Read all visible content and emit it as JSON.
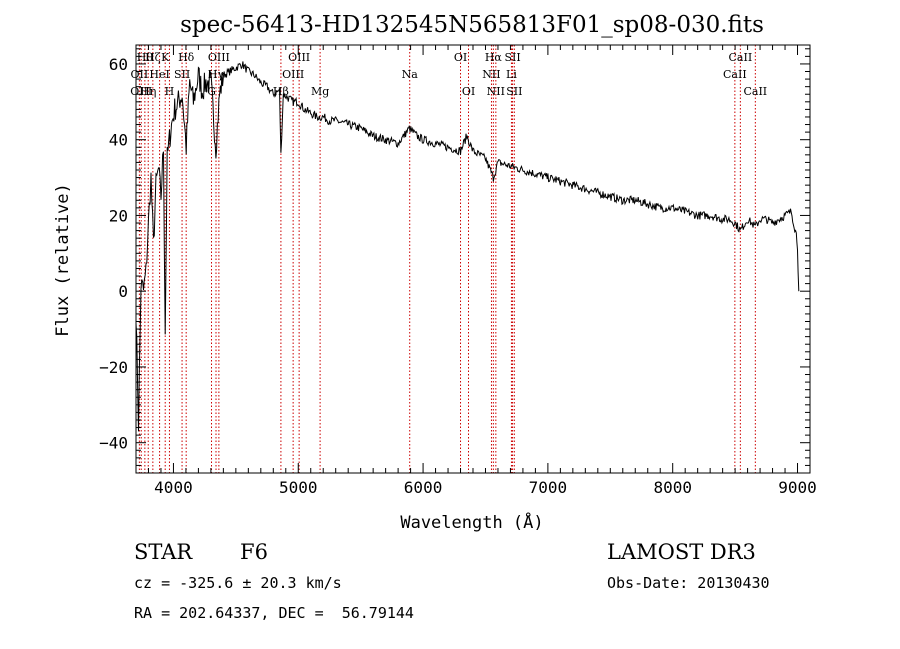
{
  "colors": {
    "spectrum": "#000000",
    "marker_line": "#cc0000",
    "text": "#000000"
  },
  "chart_data": {
    "type": "line",
    "title": "spec-56413-HD132545N565813F01_sp08-030.fits",
    "xlabel": "Wavelength (Å)",
    "ylabel": "Flux (relative)",
    "xlim": [
      3700,
      9100
    ],
    "ylim": [
      -48,
      65
    ],
    "x_ticks": [
      4000,
      5000,
      6000,
      7000,
      8000,
      9000
    ],
    "y_ticks": [
      -40,
      -20,
      0,
      20,
      40,
      60
    ],
    "series": [
      {
        "name": "spectrum",
        "x": [
          3700,
          3720,
          3740,
          3760,
          3780,
          3800,
          3820,
          3840,
          3860,
          3880,
          3900,
          3920,
          3934,
          3950,
          3968,
          3990,
          4010,
          4040,
          4070,
          4102,
          4130,
          4160,
          4200,
          4230,
          4260,
          4300,
          4340,
          4370,
          4400,
          4450,
          4500,
          4550,
          4600,
          4650,
          4700,
          4750,
          4800,
          4850,
          4861,
          4880,
          4920,
          4960,
          5000,
          5050,
          5100,
          5150,
          5200,
          5250,
          5300,
          5400,
          5500,
          5600,
          5700,
          5800,
          5890,
          5950,
          6000,
          6100,
          6200,
          6300,
          6350,
          6400,
          6450,
          6500,
          6563,
          6600,
          6700,
          6800,
          6900,
          7000,
          7100,
          7200,
          7300,
          7400,
          7500,
          7600,
          7700,
          7800,
          7900,
          8000,
          8100,
          8200,
          8300,
          8400,
          8450,
          8500,
          8542,
          8600,
          8662,
          8700,
          8750,
          8800,
          8850,
          8900,
          8950,
          8990,
          9000,
          9010
        ],
        "values": [
          -5,
          -35,
          2,
          0,
          5,
          18,
          30,
          12,
          28,
          32,
          25,
          38,
          -10,
          35,
          40,
          45,
          48,
          50,
          52,
          38,
          55,
          50,
          57,
          53,
          55,
          55,
          38,
          52,
          57,
          58,
          59,
          60,
          58,
          57,
          55,
          54,
          52,
          53,
          36,
          52,
          51,
          50,
          50,
          48,
          47,
          46,
          46,
          45,
          45,
          44,
          43,
          41,
          40,
          39,
          43,
          41,
          40,
          39,
          38,
          37,
          41,
          37,
          36,
          35,
          30,
          34,
          33,
          32,
          31,
          30,
          29,
          28,
          27,
          26,
          25,
          24,
          24,
          23,
          22,
          22,
          21,
          20,
          20,
          19,
          19,
          18,
          16,
          19,
          17,
          19,
          19,
          18,
          19,
          20,
          21,
          15,
          12,
          0
        ]
      }
    ],
    "line_markers": [
      {
        "label": "OII",
        "x": 3727,
        "row": 1
      },
      {
        "label": "OIII",
        "x": 3742,
        "row": 2
      },
      {
        "label": "Hθ",
        "x": 3771,
        "row": 0
      },
      {
        "label": "Hη",
        "x": 3798,
        "row": 2
      },
      {
        "label": "Hζ",
        "x": 3835,
        "row": 0
      },
      {
        "label": "HeI",
        "x": 3889,
        "row": 1
      },
      {
        "label": "K",
        "x": 3934,
        "row": 0
      },
      {
        "label": "H",
        "x": 3968,
        "row": 2
      },
      {
        "label": "SII",
        "x": 4069,
        "row": 1
      },
      {
        "label": "Hδ",
        "x": 4102,
        "row": 0
      },
      {
        "label": "G",
        "x": 4305,
        "row": 2
      },
      {
        "label": "Hγ",
        "x": 4341,
        "row": 1
      },
      {
        "label": "OIII",
        "x": 4364,
        "row": 0
      },
      {
        "label": "Hβ",
        "x": 4861,
        "row": 2
      },
      {
        "label": "OIII",
        "x": 4959,
        "row": 1
      },
      {
        "label": "OIII",
        "x": 5007,
        "row": 0
      },
      {
        "label": "Mg",
        "x": 5175,
        "row": 2
      },
      {
        "label": "Na",
        "x": 5893,
        "row": 1
      },
      {
        "label": "OI",
        "x": 6300,
        "row": 0
      },
      {
        "label": "OI",
        "x": 6364,
        "row": 2
      },
      {
        "label": "NII",
        "x": 6548,
        "row": 1
      },
      {
        "label": "Hα",
        "x": 6563,
        "row": 0
      },
      {
        "label": "NII",
        "x": 6583,
        "row": 2
      },
      {
        "label": "Li",
        "x": 6708,
        "row": 1
      },
      {
        "label": "SII",
        "x": 6717,
        "row": 0
      },
      {
        "label": "SII",
        "x": 6731,
        "row": 2
      },
      {
        "label": "CaII",
        "x": 8498,
        "row": 1
      },
      {
        "label": "CaII",
        "x": 8542,
        "row": 0
      },
      {
        "label": "CaII",
        "x": 8662,
        "row": 2
      }
    ]
  },
  "info": {
    "object_class": "STAR",
    "subclass": "F6",
    "survey": "LAMOST DR3",
    "redshift": "cz = -325.6 ± 20.3 km/s",
    "obs_date": "Obs-Date: 20130430",
    "coords": "RA = 202.64337, DEC =  56.79144"
  }
}
